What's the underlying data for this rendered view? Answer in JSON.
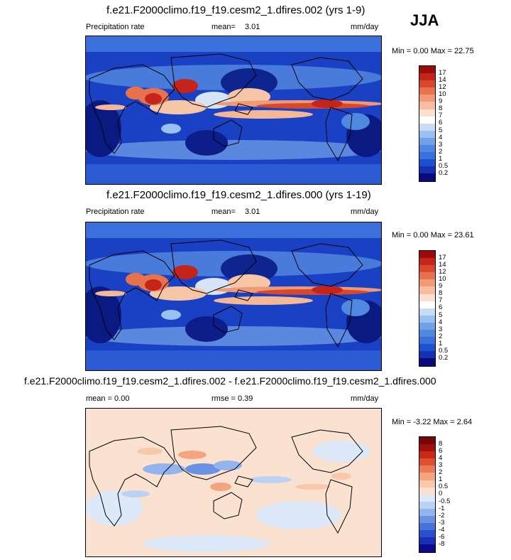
{
  "season": "JJA",
  "panels": [
    {
      "title": "f.e21.F2000climo.f19_f19.cesm2_1.dfires.002 (yrs 1-9)",
      "variable": "Precipitation rate",
      "stat_label": "mean=",
      "stat_value": "3.01",
      "units": "mm/day",
      "minmax": "Min =  0.00 Max = 22.75"
    },
    {
      "title": "f.e21.F2000climo.f19_f19.cesm2_1.dfires.000 (yrs 1-19)",
      "variable": "Precipitation rate",
      "stat_label": "mean=",
      "stat_value": "3.01",
      "units": "mm/day",
      "minmax": "Min =  0.00 Max = 23.61"
    },
    {
      "title": "f.e21.F2000climo.f19_f19.cesm2_1.dfires.002 - f.e21.F2000climo.f19_f19.cesm2_1.dfires.000",
      "mean_text": "mean =   0.00",
      "rmse_text": "rmse =   0.39",
      "units": "mm/day",
      "minmax": "Min = -3.22 Max =   2.64"
    }
  ],
  "chart_data": [
    {
      "type": "heatmap",
      "title": "f.e21.F2000climo.f19_f19.cesm2_1.dfires.002 (yrs 1-9)",
      "variable": "Precipitation rate",
      "units": "mm/day",
      "mean": 3.01,
      "min": 0.0,
      "max": 22.75,
      "colorbar_levels": [
        "0.2",
        "0.5",
        "1",
        "2",
        "3",
        "4",
        "5",
        "6",
        "7",
        "8",
        "9",
        "10",
        "12",
        "14",
        "17"
      ],
      "colors": [
        "#0a0a7a",
        "#1530b0",
        "#1f50d0",
        "#3870dc",
        "#5088e0",
        "#70a0e8",
        "#98c0f0",
        "#c8dcf4",
        "#ffffff",
        "#fde0cf",
        "#f8bca0",
        "#f19a76",
        "#e8724e",
        "#d9482c",
        "#c4241a",
        "#9c0a0a"
      ]
    },
    {
      "type": "heatmap",
      "title": "f.e21.F2000climo.f19_f19.cesm2_1.dfires.000 (yrs 1-19)",
      "variable": "Precipitation rate",
      "units": "mm/day",
      "mean": 3.01,
      "min": 0.0,
      "max": 23.61,
      "colorbar_levels": [
        "0.2",
        "0.5",
        "1",
        "2",
        "3",
        "4",
        "5",
        "6",
        "7",
        "8",
        "9",
        "10",
        "12",
        "14",
        "17"
      ],
      "colors": [
        "#0a0a7a",
        "#1530b0",
        "#1f50d0",
        "#3870dc",
        "#5088e0",
        "#70a0e8",
        "#98c0f0",
        "#c8dcf4",
        "#ffffff",
        "#fde0cf",
        "#f8bca0",
        "#f19a76",
        "#e8724e",
        "#d9482c",
        "#c4241a",
        "#9c0a0a"
      ]
    },
    {
      "type": "heatmap",
      "title": "f.e21.F2000climo.f19_f19.cesm2_1.dfires.002 - f.e21.F2000climo.f19_f19.cesm2_1.dfires.000",
      "units": "mm/day",
      "mean": 0.0,
      "rmse": 0.39,
      "min": -3.22,
      "max": 2.64,
      "colorbar_levels": [
        "-8",
        "-6",
        "-4",
        "-3",
        "-2",
        "-1",
        "-0.5",
        "0",
        "0.5",
        "1",
        "2",
        "3",
        "4",
        "6",
        "8"
      ],
      "colors": [
        "#0a0a8a",
        "#1a30b8",
        "#2a50d0",
        "#4a72dc",
        "#6a92e4",
        "#94b4ee",
        "#bcd2f4",
        "#dde8f8",
        "#fbe2d0",
        "#f8c8a8",
        "#f4a47e",
        "#ec7a54",
        "#e0502e",
        "#c82818",
        "#a01010",
        "#780606"
      ]
    }
  ]
}
